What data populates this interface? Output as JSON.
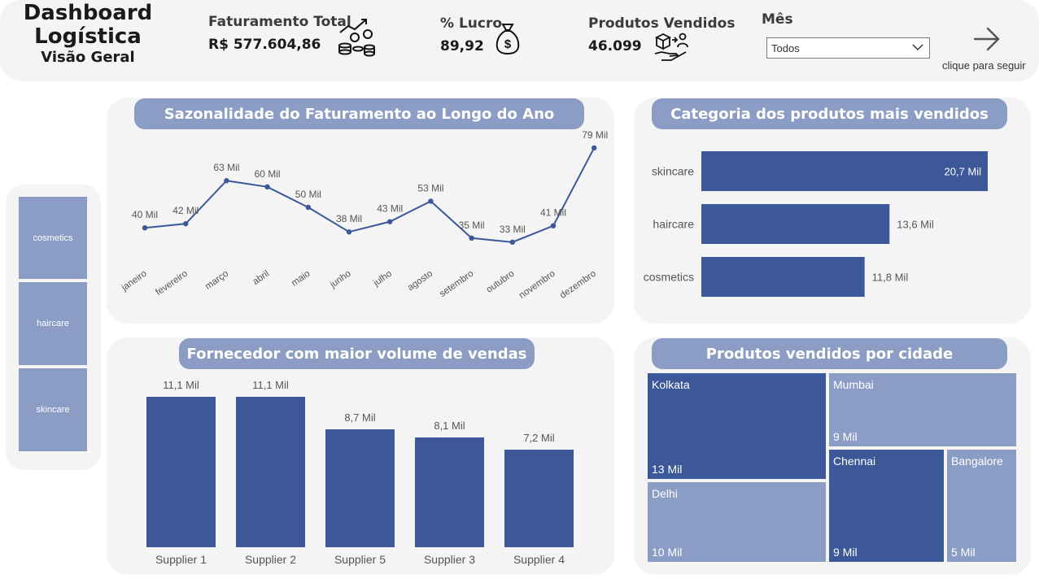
{
  "header": {
    "title_line1": "Dashboard",
    "title_line2": "Logística",
    "subtitle": "Visão Geral"
  },
  "kpis": [
    {
      "label": "Faturamento Total",
      "value": "R$ 577.604,86",
      "icon": "money-growth-icon"
    },
    {
      "label": "% Lucro",
      "value": "89,92",
      "icon": "money-bag-icon"
    },
    {
      "label": "Produtos Vendidos",
      "value": "46.099",
      "icon": "product-delivery-icon"
    }
  ],
  "month_filter": {
    "label": "Mês",
    "selected": "Todos"
  },
  "navigation": {
    "caption": "clique para seguir",
    "icon": "arrow-right-icon"
  },
  "category_filter": {
    "items": [
      "cosmetics",
      "haircare",
      "skincare"
    ]
  },
  "colors": {
    "accent": "#3c5898",
    "pill": "#8b9dc4",
    "panel": "#f4f4f5"
  },
  "charts": {
    "seasonality": {
      "title": "Sazonalidade do Faturamento ao Longo do Ano"
    },
    "categories": {
      "title": "Categoria dos produtos mais vendidos"
    },
    "suppliers": {
      "title": "Fornecedor com maior volume de vendas"
    },
    "cities": {
      "title": "Produtos vendidos por cidade"
    }
  },
  "chart_data": [
    {
      "type": "line",
      "title": "Sazonalidade do Faturamento ao Longo do Ano",
      "categories": [
        "janeiro",
        "fevereiro",
        "março",
        "abril",
        "maio",
        "junho",
        "julho",
        "agosto",
        "setembro",
        "outubro",
        "novembro",
        "dezembro"
      ],
      "values": [
        40,
        42,
        63,
        60,
        50,
        38,
        43,
        53,
        35,
        33,
        41,
        79
      ],
      "labels": [
        "40 Mil",
        "42 Mil",
        "63 Mil",
        "60 Mil",
        "50 Mil",
        "38 Mil",
        "43 Mil",
        "53 Mil",
        "35 Mil",
        "33 Mil",
        "41 Mil",
        "79 Mil"
      ],
      "unit": "Mil"
    },
    {
      "type": "bar",
      "orientation": "horizontal",
      "title": "Categoria dos produtos mais vendidos",
      "categories": [
        "skincare",
        "haircare",
        "cosmetics"
      ],
      "values": [
        20.7,
        13.6,
        11.8
      ],
      "labels": [
        "20,7 Mil",
        "13,6 Mil",
        "11,8 Mil"
      ],
      "unit": "Mil"
    },
    {
      "type": "bar",
      "title": "Fornecedor com maior volume de vendas",
      "categories": [
        "Supplier 1",
        "Supplier 2",
        "Supplier 5",
        "Supplier 3",
        "Supplier 4"
      ],
      "values": [
        11.1,
        11.1,
        8.7,
        8.1,
        7.2
      ],
      "labels": [
        "11,1 Mil",
        "11,1 Mil",
        "8,7 Mil",
        "8,1 Mil",
        "7,2 Mil"
      ],
      "unit": "Mil"
    },
    {
      "type": "treemap",
      "title": "Produtos vendidos por cidade",
      "categories": [
        "Kolkata",
        "Mumbai",
        "Delhi",
        "Chennai",
        "Bangalore"
      ],
      "values": [
        13,
        9,
        10,
        9,
        5
      ],
      "labels": [
        "13 Mil",
        "9 Mil",
        "10 Mil",
        "9 Mil",
        "5 Mil"
      ],
      "colors": [
        "#3c5898",
        "#8b9dc4",
        "#8b9dc4",
        "#3c5898",
        "#8b9dc4"
      ],
      "unit": "Mil"
    }
  ]
}
